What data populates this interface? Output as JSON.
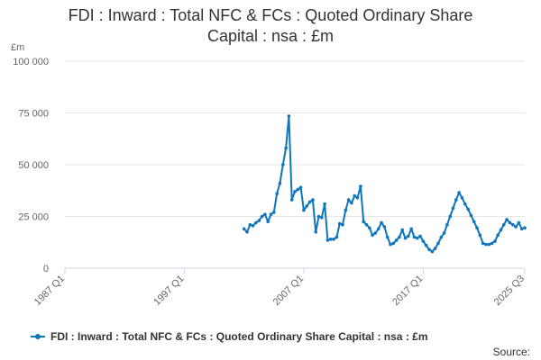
{
  "title_line1": "FDI : Inward : Total NFC & FCs : Quoted Ordinary Share",
  "title_line2": "Capital : nsa : £m",
  "unit_label": "£m",
  "legend_label": "FDI : Inward : Total NFC & FCs : Quoted Ordinary Share Capital : nsa : £m",
  "source_label": "Source:",
  "colors": {
    "series": "#0e76bc",
    "grid": "#e6e6e6",
    "axis": "#ccd6eb"
  },
  "chart_data": {
    "type": "line",
    "title": "FDI : Inward : Total NFC & FCs : Quoted Ordinary Share Capital : nsa : £m",
    "ylabel": "£m",
    "ylim": [
      0,
      100000
    ],
    "yticks": [
      0,
      25000,
      50000,
      75000,
      100000
    ],
    "ytick_labels": [
      "0",
      "25 000",
      "50 000",
      "75 000",
      "100 000"
    ],
    "xlim": [
      1987,
      2025.5
    ],
    "xticks": [
      1987,
      1997,
      2007,
      2017,
      2025.5
    ],
    "xtick_labels": [
      "1987 Q1",
      "1997 Q1",
      "2007 Q1",
      "2017 Q1",
      "2025 Q3"
    ],
    "grid": true,
    "legend_position": "bottom",
    "series": [
      {
        "name": "FDI : Inward : Total NFC & FCs : Quoted Ordinary Share Capital : nsa : £m",
        "x": [
          2002.0,
          2002.25,
          2002.5,
          2002.75,
          2003.0,
          2003.25,
          2003.5,
          2003.75,
          2004.0,
          2004.25,
          2004.5,
          2004.75,
          2005.0,
          2005.25,
          2005.5,
          2005.75,
          2006.0,
          2006.25,
          2006.5,
          2006.75,
          2007.0,
          2007.25,
          2007.5,
          2007.75,
          2008.0,
          2008.25,
          2008.5,
          2008.75,
          2009.0,
          2009.25,
          2009.5,
          2009.75,
          2010.0,
          2010.25,
          2010.5,
          2010.75,
          2011.0,
          2011.25,
          2011.5,
          2011.75,
          2012.0,
          2012.25,
          2012.5,
          2012.75,
          2013.0,
          2013.25,
          2013.5,
          2013.75,
          2014.0,
          2014.25,
          2014.5,
          2014.75,
          2015.0,
          2015.25,
          2015.5,
          2015.75,
          2016.0,
          2016.25,
          2016.5,
          2016.75,
          2017.0,
          2017.25,
          2017.5,
          2017.75,
          2018.0,
          2018.25,
          2018.5,
          2018.75,
          2019.0,
          2019.25,
          2019.5,
          2019.75,
          2020.0,
          2020.25,
          2020.5,
          2020.75,
          2021.0,
          2021.25,
          2021.5,
          2021.75,
          2022.0,
          2022.25,
          2022.5,
          2022.75,
          2023.0,
          2023.25,
          2023.5,
          2023.75,
          2024.0,
          2024.25,
          2024.5,
          2024.75,
          2025.0,
          2025.25,
          2025.5
        ],
        "values": [
          19000,
          17500,
          21000,
          20500,
          22000,
          23000,
          25000,
          26000,
          22500,
          26000,
          27000,
          36000,
          41000,
          50000,
          58000,
          73500,
          33000,
          37000,
          38000,
          39000,
          28000,
          30000,
          32000,
          33000,
          17500,
          25000,
          24500,
          31000,
          13500,
          14000,
          14000,
          15000,
          21500,
          21000,
          28000,
          33000,
          31500,
          35000,
          34000,
          39500,
          22500,
          21000,
          19500,
          16000,
          17000,
          19000,
          22000,
          20000,
          15000,
          11500,
          12000,
          13500,
          15000,
          18500,
          14500,
          15500,
          19000,
          15000,
          14500,
          15500,
          13000,
          11000,
          9000,
          8000,
          9500,
          12000,
          15000,
          17000,
          21000,
          25000,
          29000,
          33000,
          36500,
          34000,
          31000,
          28500,
          25500,
          22500,
          19500,
          16000,
          12000,
          11500,
          11500,
          12000,
          13000,
          16000,
          18500,
          21000,
          23500,
          22000,
          21000,
          20000,
          22000,
          19000,
          19500
        ]
      }
    ]
  }
}
